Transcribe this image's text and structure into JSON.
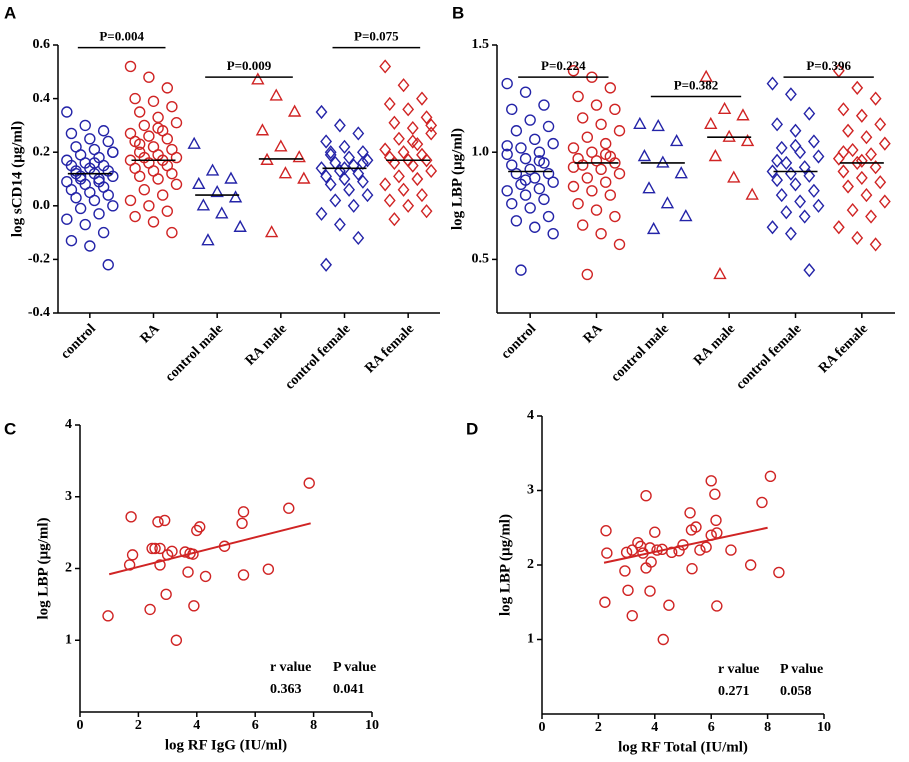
{
  "chart_data": [
    {
      "type": "strip",
      "panel": "A",
      "ylabel": "log sCD14 (µg/ml)",
      "categories": [
        "control",
        "RA",
        "control male",
        "RA male",
        "control female",
        "RA female"
      ],
      "colors": [
        "#2424a8",
        "#d02424",
        "#2424a8",
        "#d02424",
        "#2424a8",
        "#d02424"
      ],
      "markers": [
        "circle",
        "circle",
        "triangle",
        "triangle",
        "diamond",
        "diamond"
      ],
      "values": [
        [
          0.35,
          0.3,
          0.28,
          0.27,
          0.25,
          0.24,
          0.22,
          0.21,
          0.2,
          0.19,
          0.18,
          0.17,
          0.16,
          0.15,
          0.15,
          0.14,
          0.13,
          0.12,
          0.12,
          0.11,
          0.1,
          0.1,
          0.09,
          0.08,
          0.07,
          0.06,
          0.05,
          0.04,
          0.03,
          0.02,
          0.0,
          -0.01,
          -0.03,
          -0.05,
          -0.07,
          -0.1,
          -0.13,
          -0.15,
          -0.22,
          0.13,
          0.16,
          0.2,
          0.11,
          0.09
        ],
        [
          0.52,
          0.48,
          0.44,
          0.4,
          0.39,
          0.37,
          0.35,
          0.33,
          0.31,
          0.3,
          0.28,
          0.27,
          0.26,
          0.25,
          0.24,
          0.22,
          0.21,
          0.2,
          0.19,
          0.18,
          0.18,
          0.17,
          0.17,
          0.16,
          0.15,
          0.14,
          0.13,
          0.12,
          0.11,
          0.1,
          0.08,
          0.06,
          0.04,
          0.02,
          0.0,
          -0.02,
          -0.04,
          -0.06,
          -0.1,
          0.23,
          0.29
        ],
        [
          0.23,
          0.13,
          0.1,
          0.08,
          0.05,
          0.03,
          0.0,
          -0.03,
          -0.08,
          -0.13
        ],
        [
          0.47,
          0.41,
          0.35,
          0.28,
          0.22,
          0.18,
          0.17,
          0.12,
          0.1,
          -0.1
        ],
        [
          0.35,
          0.3,
          0.27,
          0.24,
          0.22,
          0.2,
          0.19,
          0.18,
          0.17,
          0.16,
          0.15,
          0.14,
          0.13,
          0.12,
          0.11,
          0.1,
          0.09,
          0.08,
          0.06,
          0.04,
          0.02,
          0.0,
          -0.03,
          -0.07,
          -0.12,
          -0.22,
          0.14,
          0.16,
          0.2
        ],
        [
          0.52,
          0.45,
          0.4,
          0.38,
          0.36,
          0.33,
          0.31,
          0.29,
          0.27,
          0.25,
          0.23,
          0.21,
          0.2,
          0.19,
          0.18,
          0.17,
          0.17,
          0.16,
          0.15,
          0.13,
          0.11,
          0.1,
          0.08,
          0.06,
          0.04,
          0.02,
          0.0,
          -0.02,
          -0.05,
          0.24,
          0.3
        ]
      ],
      "medians": [
        0.12,
        0.17,
        0.04,
        0.175,
        0.14,
        0.17
      ],
      "comparisons": [
        {
          "label": "P=0.004",
          "from": 0,
          "to": 1,
          "y": 0.59,
          "bold": true
        },
        {
          "label": "P=0.009",
          "from": 2,
          "to": 3,
          "y": 0.48,
          "bold": true
        },
        {
          "label": "P=0.075",
          "from": 4,
          "to": 5,
          "y": 0.59,
          "bold": false
        }
      ],
      "ylim": [
        -0.4,
        0.6
      ],
      "yticks": [
        -0.4,
        -0.2,
        {
          "value": 0,
          "label": "0.0"
        },
        0.2,
        0.4,
        0.6
      ]
    },
    {
      "type": "strip",
      "panel": "B",
      "ylabel": "log LBP (µg/ml)",
      "categories": [
        "control",
        "RA",
        "control male",
        "RA male",
        "control female",
        "RA female"
      ],
      "colors": [
        "#2424a8",
        "#d02424",
        "#2424a8",
        "#d02424",
        "#2424a8",
        "#d02424"
      ],
      "markers": [
        "circle",
        "circle",
        "triangle",
        "triangle",
        "diamond",
        "diamond"
      ],
      "values": [
        [
          1.32,
          1.28,
          1.22,
          1.2,
          1.15,
          1.12,
          1.1,
          1.06,
          1.04,
          1.02,
          1.0,
          0.99,
          0.97,
          0.95,
          0.94,
          0.92,
          0.9,
          0.9,
          0.88,
          0.86,
          0.85,
          0.83,
          0.82,
          0.8,
          0.78,
          0.76,
          0.74,
          0.7,
          0.68,
          0.65,
          0.62,
          0.45,
          0.96,
          1.03,
          0.87
        ],
        [
          1.38,
          1.35,
          1.3,
          1.26,
          1.22,
          1.2,
          1.16,
          1.13,
          1.1,
          1.07,
          1.04,
          1.02,
          1.0,
          0.98,
          0.97,
          0.96,
          0.95,
          0.94,
          0.92,
          0.9,
          0.88,
          0.86,
          0.84,
          0.82,
          0.8,
          0.76,
          0.73,
          0.7,
          0.66,
          0.62,
          0.57,
          0.43,
          0.99,
          0.93
        ],
        [
          1.13,
          1.12,
          1.05,
          0.98,
          0.95,
          0.9,
          0.83,
          0.76,
          0.7,
          0.64
        ],
        [
          1.35,
          1.2,
          1.17,
          1.13,
          1.07,
          1.05,
          0.98,
          0.88,
          0.8,
          0.43
        ],
        [
          1.32,
          1.27,
          1.18,
          1.13,
          1.1,
          1.05,
          1.02,
          1.0,
          0.98,
          0.95,
          0.93,
          0.91,
          0.9,
          0.89,
          0.87,
          0.85,
          0.82,
          0.8,
          0.77,
          0.75,
          0.72,
          0.7,
          0.65,
          0.62,
          0.45,
          0.96,
          1.03
        ],
        [
          1.38,
          1.3,
          1.25,
          1.2,
          1.17,
          1.13,
          1.1,
          1.07,
          1.04,
          1.01,
          0.99,
          0.97,
          0.95,
          0.93,
          0.91,
          0.88,
          0.86,
          0.84,
          0.8,
          0.77,
          0.73,
          0.7,
          0.65,
          0.6,
          0.57,
          1.0,
          0.96
        ]
      ],
      "medians": [
        0.91,
        0.95,
        0.95,
        1.07,
        0.91,
        0.95
      ],
      "comparisons": [
        {
          "label": "P=0.224",
          "from": 0,
          "to": 1,
          "y": 1.35,
          "bold": false
        },
        {
          "label": "P=0.382",
          "from": 2,
          "to": 3,
          "y": 1.26,
          "bold": false
        },
        {
          "label": "P=0.396",
          "from": 4,
          "to": 5,
          "y": 1.35,
          "bold": false
        }
      ],
      "ylim": [
        0.25,
        1.5
      ],
      "yticks": [
        0.5,
        {
          "value": 1,
          "label": "1.0"
        },
        1.5
      ]
    },
    {
      "type": "scatter",
      "panel": "C",
      "xlabel": "log RF IgG (IU/ml)",
      "ylabel": "log LBP (µg/ml)",
      "color": "#d02424",
      "x": [
        0.96,
        1.7,
        1.75,
        1.8,
        2.4,
        2.47,
        2.57,
        2.67,
        2.74,
        2.74,
        2.9,
        2.95,
        3.0,
        3.15,
        3.3,
        3.6,
        3.7,
        3.77,
        3.87,
        4.0,
        4.1,
        3.9,
        4.3,
        4.95,
        5.55,
        5.6,
        5.6,
        6.45,
        7.15,
        7.85
      ],
      "values": [
        1.34,
        2.05,
        2.72,
        2.19,
        1.43,
        2.28,
        2.28,
        2.65,
        2.28,
        2.05,
        2.67,
        1.64,
        2.19,
        2.24,
        1.0,
        2.23,
        1.95,
        2.21,
        2.2,
        2.53,
        2.58,
        1.48,
        1.89,
        2.31,
        2.63,
        1.91,
        2.79,
        1.99,
        2.84,
        3.19
      ],
      "fit": {
        "x": [
          1,
          7.9
        ],
        "values": [
          1.92,
          2.63
        ]
      },
      "stats": {
        "r_label": "r value",
        "p_label": "P value",
        "r": 0.363,
        "p": 0.041,
        "p_bold": true
      },
      "xlim": [
        0,
        10
      ],
      "xticks": [
        0,
        2,
        4,
        6,
        8,
        10
      ],
      "ylim": [
        0,
        4
      ],
      "yticks": [
        1,
        2,
        3,
        4
      ]
    },
    {
      "type": "scatter",
      "panel": "D",
      "xlabel": "log RF Total (IU/ml)",
      "ylabel": "log LBP (µg/ml)",
      "color": "#d02424",
      "x": [
        2.27,
        2.3,
        2.23,
        2.94,
        3.0,
        3.2,
        3.05,
        3.2,
        3.4,
        3.5,
        3.69,
        3.58,
        3.69,
        3.83,
        3.87,
        3.83,
        4.0,
        4.08,
        4.26,
        4.5,
        4.6,
        4.86,
        5.0,
        5.25,
        5.3,
        5.32,
        5.46,
        5.6,
        5.82,
        6.0,
        6.13,
        6.17,
        6.2,
        8.1,
        4.3,
        6.2,
        6.7,
        7.4,
        7.8,
        8.4,
        6.0
      ],
      "values": [
        2.46,
        2.16,
        1.5,
        1.92,
        2.17,
        2.2,
        1.66,
        1.32,
        2.3,
        2.25,
        2.93,
        2.16,
        1.96,
        2.23,
        2.04,
        1.65,
        2.44,
        2.2,
        2.21,
        1.46,
        2.17,
        2.19,
        2.27,
        2.7,
        2.47,
        1.95,
        2.51,
        2.2,
        2.24,
        2.4,
        2.95,
        2.6,
        2.43,
        3.19,
        1.0,
        1.45,
        2.2,
        2.0,
        2.84,
        1.9,
        3.13
      ],
      "fit": {
        "x": [
          2.2,
          8
        ],
        "values": [
          2.03,
          2.5
        ]
      },
      "stats": {
        "r_label": "r value",
        "p_label": "P value",
        "r": 0.271,
        "p": 0.058,
        "p_bold": false
      },
      "xlim": [
        0,
        10
      ],
      "xticks": [
        0,
        2,
        4,
        6,
        8,
        10
      ],
      "ylim": [
        0,
        4
      ],
      "yticks": [
        1,
        2,
        3,
        4
      ]
    }
  ]
}
